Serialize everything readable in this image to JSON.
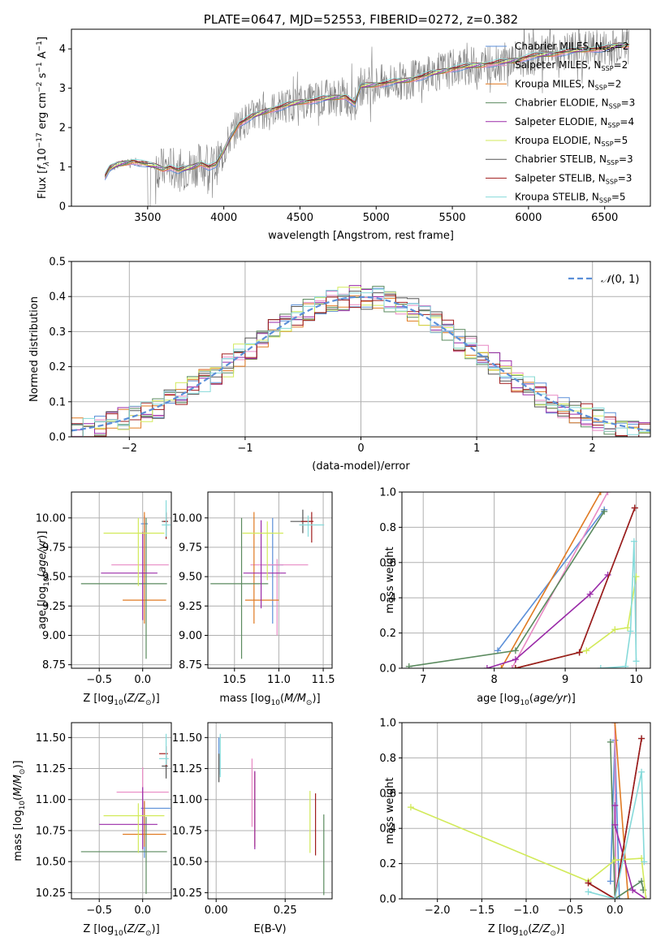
{
  "colors": {
    "Chabrier MILES": "#5b8fd8",
    "Salpeter MILES": "#e889c4",
    "Kroupa MILES": "#e07a22",
    "Chabrier ELODIE": "#5a8a5e",
    "Salpeter ELODIE": "#9a2aa8",
    "Kroupa ELODIE": "#d2ea5a",
    "Chabrier STELIB": "#555555",
    "Salpeter STELIB": "#a01c1c",
    "Kroupa STELIB": "#86dada",
    "data": "#808080",
    "grid": "#b0b0b0"
  },
  "chart_data": [
    {
      "type": "line",
      "title": "PLATE=0647, MJD=52553, FIBERID=0272, z=0.382",
      "xlabel": "wavelength [Angstrom, rest frame]",
      "ylabel": "Flux [f_λ 10^-17 erg cm^-2 s^-1 A^-1]",
      "xlim": [
        3000,
        6800
      ],
      "ylim": [
        0,
        4.5
      ],
      "xticks": [
        3500,
        4000,
        4500,
        5000,
        5500,
        6000,
        6500
      ],
      "yticks": [
        0,
        1,
        2,
        3,
        4
      ],
      "grid": false,
      "legend_position": "right",
      "legend": [
        {
          "model": "Chabrier MILES",
          "n": "2"
        },
        {
          "model": "Salpeter MILES",
          "n": "2"
        },
        {
          "model": "Kroupa MILES",
          "n": "2"
        },
        {
          "model": "Chabrier ELODIE",
          "n": "3"
        },
        {
          "model": "Salpeter ELODIE",
          "n": "4"
        },
        {
          "model": "Kroupa ELODIE",
          "n": "5"
        },
        {
          "model": "Chabrier STELIB",
          "n": "3"
        },
        {
          "model": "Salpeter STELIB",
          "n": "3"
        },
        {
          "model": "Kroupa STELIB",
          "n": "5"
        }
      ],
      "continuum": {
        "x": [
          3220,
          3250,
          3300,
          3350,
          3400,
          3450,
          3500,
          3550,
          3600,
          3650,
          3700,
          3750,
          3800,
          3850,
          3900,
          3950,
          4000,
          4050,
          4100,
          4150,
          4200,
          4300,
          4400,
          4500,
          4600,
          4700,
          4800,
          4860,
          4900,
          5000,
          5100,
          5200,
          5300,
          5400,
          5500,
          5600,
          5700,
          5800,
          5900,
          6000,
          6100,
          6200,
          6300,
          6400,
          6500,
          6600,
          6650
        ],
        "y": [
          0.75,
          0.95,
          1.05,
          1.1,
          1.15,
          1.1,
          1.05,
          1.02,
          0.95,
          1.0,
          0.9,
          0.95,
          1.0,
          1.1,
          1.0,
          1.05,
          1.4,
          1.8,
          2.1,
          2.2,
          2.3,
          2.45,
          2.55,
          2.65,
          2.7,
          2.75,
          2.8,
          2.6,
          3.05,
          3.1,
          3.15,
          3.2,
          3.3,
          3.4,
          3.5,
          3.55,
          3.6,
          3.65,
          3.7,
          3.8,
          3.85,
          3.9,
          3.95,
          4.0,
          4.0,
          4.1,
          4.1
        ]
      }
    },
    {
      "type": "line",
      "xlabel": "(data-model)/error",
      "ylabel": "Normed distribution",
      "xlim": [
        -2.5,
        2.5
      ],
      "ylim": [
        0,
        0.5
      ],
      "xticks": [
        -2,
        -1,
        0,
        1,
        2
      ],
      "yticks": [
        0.0,
        0.1,
        0.2,
        0.3,
        0.4,
        0.5
      ],
      "grid": true,
      "legend_position": "top-right",
      "reference_curve": "N(0,1)",
      "bin_width": 0.1
    },
    {
      "type": "scatter",
      "xlabel": "Z [log10(Z/Z⊙)]",
      "ylabel": "age  [log10(age/yr)]",
      "xlim": [
        -0.82,
        0.33
      ],
      "ylim": [
        8.72,
        10.22
      ],
      "xticks": [
        -0.5,
        0.0
      ],
      "yticks": [
        8.75,
        9.0,
        9.25,
        9.5,
        9.75,
        10.0
      ],
      "grid": true,
      "points": [
        {
          "model": "Chabrier MILES",
          "x": 0.02,
          "xerr": [
            0.04,
            0.04
          ],
          "y": 9.95,
          "yerr": [
            0.1,
            0.06
          ]
        },
        {
          "model": "Salpeter MILES",
          "x": 0.02,
          "xerr": [
            0.38,
            0.28
          ],
          "y": 9.6,
          "yerr": [
            0.05,
            0.42
          ]
        },
        {
          "model": "Kroupa MILES",
          "x": 0.02,
          "xerr": [
            0.25,
            0.25
          ],
          "y": 9.3,
          "yerr": [
            0.2,
            0.75
          ]
        },
        {
          "model": "Chabrier ELODIE",
          "x": 0.04,
          "xerr": [
            0.75,
            0.24
          ],
          "y": 9.44,
          "yerr": [
            0.64,
            0.56
          ]
        },
        {
          "model": "Salpeter ELODIE",
          "x": 0.0,
          "xerr": [
            0.48,
            0.17
          ],
          "y": 9.53,
          "yerr": [
            0.4,
            0.35
          ]
        },
        {
          "model": "Kroupa ELODIE",
          "x": -0.05,
          "xerr": [
            0.4,
            0.3
          ],
          "y": 9.87,
          "yerr": [
            0.45,
            0.13
          ]
        },
        {
          "model": "Chabrier STELIB",
          "x": 0.27,
          "xerr": [
            0.05,
            0.02
          ],
          "y": 9.97,
          "yerr": [
            0.07,
            0.07
          ]
        },
        {
          "model": "Salpeter STELIB",
          "x": 0.27,
          "xerr": [
            0.03,
            0.02
          ],
          "y": 9.97,
          "yerr": [
            0.15,
            0.08
          ]
        },
        {
          "model": "Kroupa STELIB",
          "x": 0.27,
          "xerr": [
            0.05,
            0.05
          ],
          "y": 9.94,
          "yerr": [
            0.1,
            0.21
          ]
        }
      ]
    },
    {
      "type": "scatter",
      "xlabel": "mass [log10(M/M⊙)]",
      "ylabel": "",
      "xlim": [
        10.2,
        11.6
      ],
      "ylim": [
        8.72,
        10.22
      ],
      "xticks": [
        10.5,
        11.0,
        11.5
      ],
      "yticks": [
        8.75,
        9.0,
        9.25,
        9.5,
        9.75,
        10.0
      ],
      "grid": true,
      "points": [
        {
          "model": "Chabrier MILES",
          "x": 10.93,
          "xerr": [
            0.12,
            0.12
          ],
          "y": 9.6,
          "yerr": [
            0.5,
            0.4
          ]
        },
        {
          "model": "Salpeter MILES",
          "x": 10.98,
          "xerr": [
            0.3,
            0.35
          ],
          "y": 9.6,
          "yerr": [
            0.6,
            0.05
          ]
        },
        {
          "model": "Kroupa MILES",
          "x": 10.72,
          "xerr": [
            0.1,
            0.28
          ],
          "y": 9.3,
          "yerr": [
            0.2,
            0.75
          ]
        },
        {
          "model": "Chabrier ELODIE",
          "x": 10.58,
          "xerr": [
            0.35,
            0.3
          ],
          "y": 9.44,
          "yerr": [
            0.64,
            0.56
          ]
        },
        {
          "model": "Salpeter ELODIE",
          "x": 10.8,
          "xerr": [
            0.2,
            0.28
          ],
          "y": 9.53,
          "yerr": [
            0.3,
            0.45
          ]
        },
        {
          "model": "Kroupa ELODIE",
          "x": 10.87,
          "xerr": [
            0.28,
            0.18
          ],
          "y": 9.87,
          "yerr": [
            0.4,
            0.1
          ]
        },
        {
          "model": "Chabrier STELIB",
          "x": 11.27,
          "xerr": [
            0.14,
            0.1
          ],
          "y": 9.97,
          "yerr": [
            0.1,
            0.1
          ]
        },
        {
          "model": "Salpeter STELIB",
          "x": 11.37,
          "xerr": [
            0.12,
            0.02
          ],
          "y": 9.97,
          "yerr": [
            0.18,
            0.08
          ]
        },
        {
          "model": "Kroupa STELIB",
          "x": 11.33,
          "xerr": [
            0.1,
            0.18
          ],
          "y": 9.94,
          "yerr": [
            0.1,
            0.08
          ]
        }
      ]
    },
    {
      "type": "line",
      "xlabel": "age  [log10(age/yr)]",
      "ylabel": "mass weight",
      "xlim": [
        6.7,
        10.2
      ],
      "ylim": [
        0,
        1.0
      ],
      "xticks": [
        7,
        8,
        9,
        10
      ],
      "yticks": [
        0.0,
        0.2,
        0.4,
        0.6,
        0.8,
        1.0
      ],
      "grid": true,
      "series": [
        {
          "model": "Chabrier MILES",
          "x": [
            8.05,
            9.55
          ],
          "y": [
            0.1,
            0.9
          ]
        },
        {
          "model": "Salpeter MILES",
          "x": [
            8.25,
            9.6
          ],
          "y": [
            0.0,
            1.0
          ]
        },
        {
          "model": "Kroupa MILES",
          "x": [
            8.1,
            9.5
          ],
          "y": [
            0.0,
            1.0
          ]
        },
        {
          "model": "Chabrier ELODIE",
          "x": [
            6.8,
            8.3,
            9.55
          ],
          "y": [
            0.01,
            0.1,
            0.89
          ]
        },
        {
          "model": "Salpeter ELODIE",
          "x": [
            7.9,
            8.3,
            9.35,
            9.6
          ],
          "y": [
            0.0,
            0.05,
            0.42,
            0.53
          ]
        },
        {
          "model": "Kroupa ELODIE",
          "x": [
            8.3,
            9.3,
            9.7,
            9.88,
            10.0
          ],
          "y": [
            0.0,
            0.1,
            0.22,
            0.23,
            0.52
          ]
        },
        {
          "model": "Chabrier STELIB",
          "x": [
            8.3,
            9.2,
            9.98
          ],
          "y": [
            0.0,
            0.09,
            0.91
          ]
        },
        {
          "model": "Salpeter STELIB",
          "x": [
            8.3,
            9.2,
            9.98
          ],
          "y": [
            0.0,
            0.09,
            0.91
          ]
        },
        {
          "model": "Kroupa STELIB",
          "x": [
            9.5,
            9.85,
            9.92,
            9.97,
            10.0
          ],
          "y": [
            0.0,
            0.01,
            0.21,
            0.72,
            0.04
          ]
        }
      ]
    },
    {
      "type": "scatter",
      "xlabel": "Z [log10(Z/Z⊙)]",
      "ylabel": "mass [log10(M/M⊙)]",
      "xlim": [
        -0.82,
        0.33
      ],
      "ylim": [
        10.2,
        11.62
      ],
      "xticks": [
        -0.5,
        0.0
      ],
      "yticks": [
        10.25,
        10.5,
        10.75,
        11.0,
        11.25,
        11.5
      ],
      "grid": true,
      "points": [
        {
          "model": "Chabrier MILES",
          "x": 0.02,
          "xerr": [
            0.04,
            0.3
          ],
          "y": 10.93,
          "yerr": [
            0.4,
            0.05
          ]
        },
        {
          "model": "Salpeter MILES",
          "x": 0.0,
          "xerr": [
            0.3,
            0.3
          ],
          "y": 11.06,
          "yerr": [
            0.2,
            0.2
          ]
        },
        {
          "model": "Kroupa MILES",
          "x": 0.02,
          "xerr": [
            0.25,
            0.25
          ],
          "y": 10.72,
          "yerr": [
            0.1,
            0.27
          ]
        },
        {
          "model": "Chabrier ELODIE",
          "x": 0.04,
          "xerr": [
            0.75,
            0.24
          ],
          "y": 10.58,
          "yerr": [
            0.34,
            0.28
          ]
        },
        {
          "model": "Salpeter ELODIE",
          "x": 0.0,
          "xerr": [
            0.5,
            0.17
          ],
          "y": 10.8,
          "yerr": [
            0.2,
            0.3
          ]
        },
        {
          "model": "Kroupa ELODIE",
          "x": -0.05,
          "xerr": [
            0.4,
            0.3
          ],
          "y": 10.87,
          "yerr": [
            0.3,
            0.1
          ]
        },
        {
          "model": "Chabrier STELIB",
          "x": 0.27,
          "xerr": [
            0.05,
            0.02
          ],
          "y": 11.27,
          "yerr": [
            0.1,
            0.08
          ]
        },
        {
          "model": "Salpeter STELIB",
          "x": 0.27,
          "xerr": [
            0.08,
            0.02
          ],
          "y": 11.37,
          "yerr": [
            0.1,
            0.06
          ]
        },
        {
          "model": "Kroupa STELIB",
          "x": 0.27,
          "xerr": [
            0.08,
            0.03
          ],
          "y": 11.33,
          "yerr": [
            0.05,
            0.2
          ]
        }
      ]
    },
    {
      "type": "scatter",
      "xlabel": "E(B-V)",
      "ylabel": "",
      "xlim": [
        -0.03,
        0.42
      ],
      "ylim": [
        10.2,
        11.62
      ],
      "xticks": [
        0.0,
        0.25
      ],
      "yticks": [
        10.25,
        10.5,
        10.75,
        11.0,
        11.25,
        11.5
      ],
      "grid": true,
      "points": [
        {
          "model": "Chabrier MILES",
          "x": 0.01,
          "y": 11.3,
          "yerr": [
            0.1,
            0.2
          ]
        },
        {
          "model": "Salpeter MILES",
          "x": 0.13,
          "y": 10.98,
          "yerr": [
            0.2,
            0.35
          ]
        },
        {
          "model": "Kroupa MILES",
          "x": 0.14,
          "y": 10.92,
          "yerr": [
            0.3,
            0.3
          ]
        },
        {
          "model": "Chabrier ELODIE",
          "x": 0.39,
          "y": 10.58,
          "yerr": [
            0.35,
            0.3
          ]
        },
        {
          "model": "Salpeter ELODIE",
          "x": 0.14,
          "y": 10.95,
          "yerr": [
            0.35,
            0.28
          ]
        },
        {
          "model": "Kroupa ELODIE",
          "x": 0.34,
          "y": 10.87,
          "yerr": [
            0.3,
            0.2
          ]
        },
        {
          "model": "Chabrier STELIB",
          "x": 0.01,
          "y": 11.27,
          "yerr": [
            0.13,
            0.1
          ]
        },
        {
          "model": "Salpeter STELIB",
          "x": 0.36,
          "y": 10.8,
          "yerr": [
            0.25,
            0.25
          ]
        },
        {
          "model": "Kroupa STELIB",
          "x": 0.015,
          "y": 11.33,
          "yerr": [
            0.15,
            0.2
          ]
        }
      ]
    },
    {
      "type": "line",
      "xlabel": "Z [log10(Z/Z⊙)]",
      "ylabel": "mass weight",
      "xlim": [
        -2.4,
        0.4
      ],
      "ylim": [
        0,
        1.0
      ],
      "xticks": [
        -2.0,
        -1.5,
        -1.0,
        -0.5,
        0.0
      ],
      "yticks": [
        0.0,
        0.2,
        0.4,
        0.6,
        0.8,
        1.0
      ],
      "grid": true,
      "series": [
        {
          "model": "Chabrier MILES",
          "x": [
            -0.05,
            0.0,
            0.05
          ],
          "y": [
            0.1,
            0.9,
            0.0
          ]
        },
        {
          "model": "Salpeter MILES",
          "x": [
            0.0,
            0.01
          ],
          "y": [
            1.0,
            0.0
          ]
        },
        {
          "model": "Kroupa MILES",
          "x": [
            0.0,
            0.15
          ],
          "y": [
            1.0,
            0.0
          ]
        },
        {
          "model": "Chabrier ELODIE",
          "x": [
            -0.05,
            0.0,
            0.3,
            0.32
          ],
          "y": [
            0.89,
            0.0,
            0.1,
            0.05
          ]
        },
        {
          "model": "Salpeter ELODIE",
          "x": [
            0.0,
            0.0,
            0.2,
            0.35
          ],
          "y": [
            0.53,
            0.42,
            0.05,
            0.0
          ]
        },
        {
          "model": "Kroupa ELODIE",
          "x": [
            -2.3,
            -0.3,
            0.0,
            0.3,
            0.35
          ],
          "y": [
            0.52,
            0.1,
            0.22,
            0.23,
            0.0
          ]
        },
        {
          "model": "Chabrier STELIB",
          "x": [
            -0.3,
            0.0,
            0.3
          ],
          "y": [
            0.09,
            0.0,
            0.91
          ]
        },
        {
          "model": "Salpeter STELIB",
          "x": [
            -0.3,
            0.0,
            0.3
          ],
          "y": [
            0.09,
            0.0,
            0.91
          ]
        },
        {
          "model": "Kroupa STELIB",
          "x": [
            -0.3,
            0.0,
            0.3,
            0.33
          ],
          "y": [
            0.04,
            0.0,
            0.72,
            0.21
          ]
        }
      ]
    }
  ]
}
